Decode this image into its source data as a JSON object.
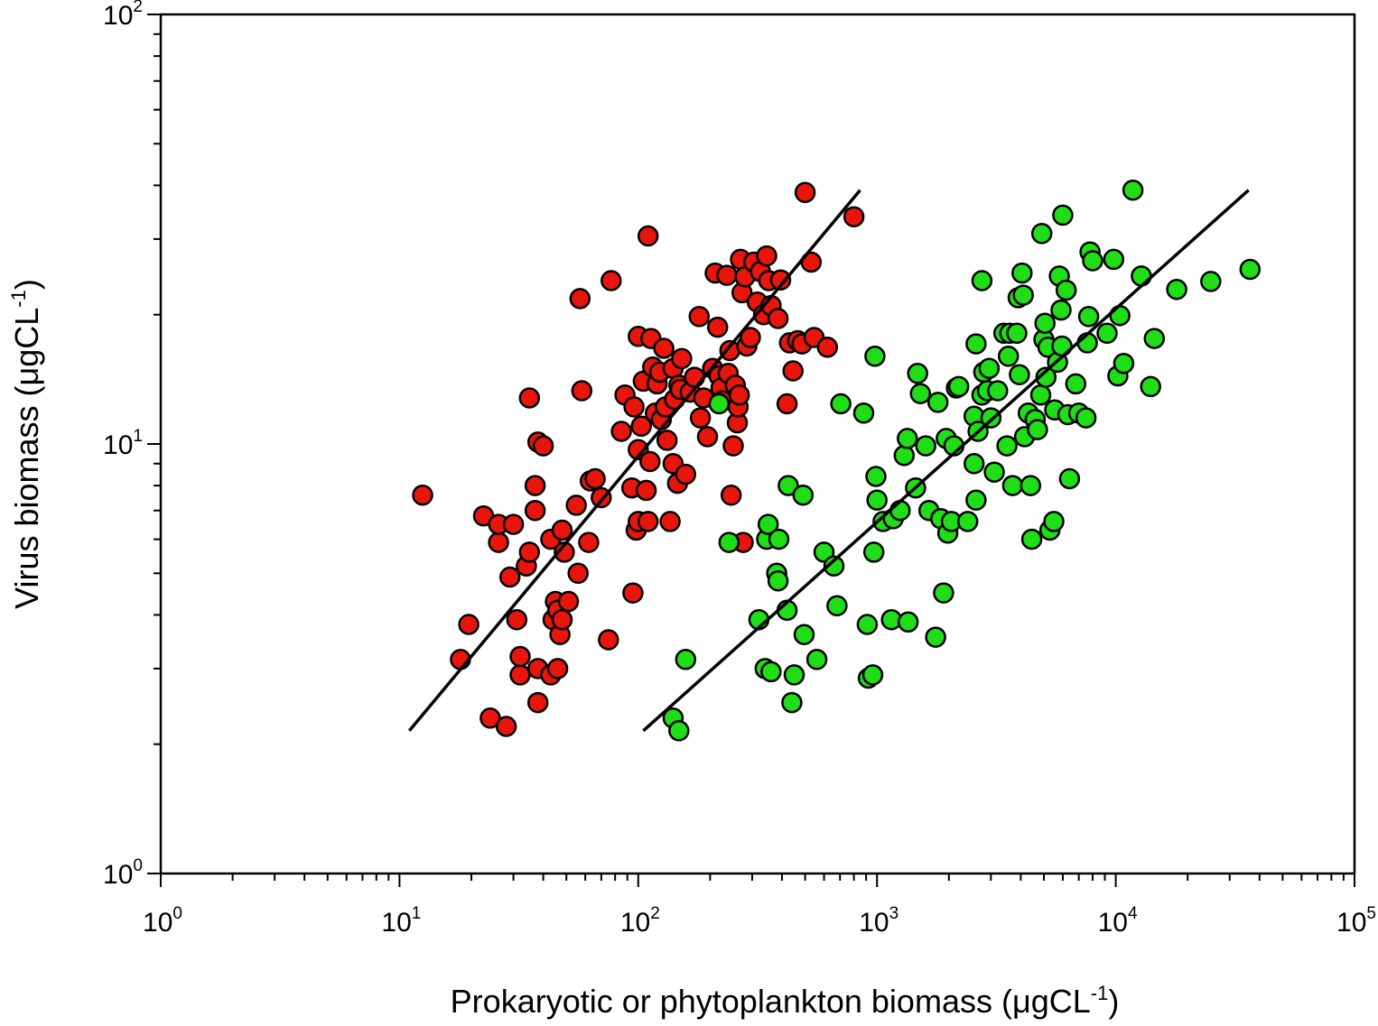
{
  "chart_data": {
    "type": "scatter",
    "title": "",
    "xlabel": {
      "main": "Prokaryotic or phytoplankton biomass (μgCL",
      "sup": "-1",
      "close": ")"
    },
    "ylabel": {
      "main": "Virus biomass (μgCL",
      "sup": "-1",
      "close": ")"
    },
    "x_scale": "log",
    "y_scale": "log",
    "xlim": [
      1,
      100000
    ],
    "ylim": [
      1,
      100
    ],
    "x_ticks": [
      {
        "value": 1,
        "base": "10",
        "exp": "0"
      },
      {
        "value": 10,
        "base": "10",
        "exp": "1"
      },
      {
        "value": 100,
        "base": "10",
        "exp": "2"
      },
      {
        "value": 1000,
        "base": "10",
        "exp": "3"
      },
      {
        "value": 10000,
        "base": "10",
        "exp": "4"
      },
      {
        "value": 100000,
        "base": "10",
        "exp": "5"
      }
    ],
    "y_ticks": [
      {
        "value": 1,
        "base": "10",
        "exp": "0"
      },
      {
        "value": 10,
        "base": "10",
        "exp": "1"
      },
      {
        "value": 100,
        "base": "10",
        "exp": "2"
      }
    ],
    "grid": false,
    "legend": "none",
    "series": [
      {
        "color": "#e8150d",
        "fit_line": [
          [
            11,
            2.15
          ],
          [
            850,
            39
          ]
        ],
        "points": [
          [
            12.5,
            7.6
          ],
          [
            18,
            3.15
          ],
          [
            19.5,
            3.8
          ],
          [
            22.5,
            6.8
          ],
          [
            24,
            2.3
          ],
          [
            26,
            5.9
          ],
          [
            26,
            6.5
          ],
          [
            28,
            2.2
          ],
          [
            29,
            4.9
          ],
          [
            30,
            6.5
          ],
          [
            31,
            3.9
          ],
          [
            32,
            2.9
          ],
          [
            32,
            3.2
          ],
          [
            34,
            5.2
          ],
          [
            35,
            5.6
          ],
          [
            35,
            12.8
          ],
          [
            37,
            8.0
          ],
          [
            37,
            7.0
          ],
          [
            38,
            10.1
          ],
          [
            38,
            2.5
          ],
          [
            38,
            3.0
          ],
          [
            40,
            9.9
          ],
          [
            43,
            2.9
          ],
          [
            43,
            6.0
          ],
          [
            44,
            3.9
          ],
          [
            45,
            4.3
          ],
          [
            46,
            3.0
          ],
          [
            46,
            4.1
          ],
          [
            47,
            3.6
          ],
          [
            48,
            3.9
          ],
          [
            48,
            6.3
          ],
          [
            49,
            5.6
          ],
          [
            51,
            4.3
          ],
          [
            55,
            7.2
          ],
          [
            56,
            5.0
          ],
          [
            57,
            21.8
          ],
          [
            58,
            13.3
          ],
          [
            62,
            5.9
          ],
          [
            63,
            8.2
          ],
          [
            66,
            8.3
          ],
          [
            70,
            7.5
          ],
          [
            75,
            3.5
          ],
          [
            77,
            24.0
          ],
          [
            85,
            10.7
          ],
          [
            88,
            13.0
          ],
          [
            94,
            7.9
          ],
          [
            95,
            4.5
          ],
          [
            96,
            12.2
          ],
          [
            98,
            6.3
          ],
          [
            100,
            6.6
          ],
          [
            100,
            17.8
          ],
          [
            100,
            9.7
          ],
          [
            103,
            11.0
          ],
          [
            105,
            14.0
          ],
          [
            108,
            7.8
          ],
          [
            110,
            30.5
          ],
          [
            110,
            6.6
          ],
          [
            112,
            9.1
          ],
          [
            113,
            17.6
          ],
          [
            115,
            15.1
          ],
          [
            118,
            11.8
          ],
          [
            120,
            13.8
          ],
          [
            123,
            14.7
          ],
          [
            125,
            11.4
          ],
          [
            128,
            16.7
          ],
          [
            130,
            12.2
          ],
          [
            132,
            10.2
          ],
          [
            136,
            6.6
          ],
          [
            140,
            9.0
          ],
          [
            140,
            15.0
          ],
          [
            142,
            12.7
          ],
          [
            146,
            8.1
          ],
          [
            148,
            13.7
          ],
          [
            150,
            13.4
          ],
          [
            152,
            15.8
          ],
          [
            158,
            8.5
          ],
          [
            165,
            13.2
          ],
          [
            172,
            14.3
          ],
          [
            180,
            19.8
          ],
          [
            182,
            11.5
          ],
          [
            188,
            12.8
          ],
          [
            195,
            10.4
          ],
          [
            205,
            15.0
          ],
          [
            210,
            25.0
          ],
          [
            215,
            18.7
          ],
          [
            218,
            14.4
          ],
          [
            222,
            13.5
          ],
          [
            225,
            12.6
          ],
          [
            235,
            24.7
          ],
          [
            238,
            14.6
          ],
          [
            242,
            16.5
          ],
          [
            245,
            7.6
          ],
          [
            250,
            9.9
          ],
          [
            255,
            13.7
          ],
          [
            260,
            11.2
          ],
          [
            262,
            12.2
          ],
          [
            265,
            13.0
          ],
          [
            268,
            26.9
          ],
          [
            272,
            22.5
          ],
          [
            275,
            5.9
          ],
          [
            280,
            24.5
          ],
          [
            285,
            16.9
          ],
          [
            295,
            17.7
          ],
          [
            305,
            26.5
          ],
          [
            315,
            21.4
          ],
          [
            325,
            25.2
          ],
          [
            335,
            20.0
          ],
          [
            345,
            27.4
          ],
          [
            352,
            24.0
          ],
          [
            360,
            21.0
          ],
          [
            385,
            19.6
          ],
          [
            395,
            24.1
          ],
          [
            420,
            12.4
          ],
          [
            430,
            17.2
          ],
          [
            445,
            14.8
          ],
          [
            465,
            17.4
          ],
          [
            485,
            17.1
          ],
          [
            500,
            38.5
          ],
          [
            530,
            26.5
          ],
          [
            545,
            17.7
          ],
          [
            620,
            16.8
          ],
          [
            800,
            33.8
          ]
        ]
      },
      {
        "color": "#1fdd17",
        "fit_line": [
          [
            105,
            2.15
          ],
          [
            36000,
            39
          ]
        ],
        "points": [
          [
            140,
            2.3
          ],
          [
            148,
            2.15
          ],
          [
            158,
            3.15
          ],
          [
            218,
            12.4
          ],
          [
            240,
            5.9
          ],
          [
            320,
            3.9
          ],
          [
            340,
            3.0
          ],
          [
            345,
            6.0
          ],
          [
            350,
            6.5
          ],
          [
            360,
            2.95
          ],
          [
            380,
            5.0
          ],
          [
            385,
            4.8
          ],
          [
            388,
            6.0
          ],
          [
            420,
            4.1
          ],
          [
            425,
            8.0
          ],
          [
            440,
            2.5
          ],
          [
            450,
            2.9
          ],
          [
            490,
            7.6
          ],
          [
            495,
            3.6
          ],
          [
            560,
            3.15
          ],
          [
            600,
            5.6
          ],
          [
            660,
            5.2
          ],
          [
            680,
            4.2
          ],
          [
            705,
            12.4
          ],
          [
            880,
            11.8
          ],
          [
            910,
            3.8
          ],
          [
            920,
            2.85
          ],
          [
            960,
            2.9
          ],
          [
            970,
            5.6
          ],
          [
            980,
            16.0
          ],
          [
            990,
            8.4
          ],
          [
            1000,
            7.4
          ],
          [
            1060,
            6.6
          ],
          [
            1150,
            3.9
          ],
          [
            1170,
            6.7
          ],
          [
            1250,
            7.0
          ],
          [
            1300,
            9.4
          ],
          [
            1340,
            10.3
          ],
          [
            1350,
            3.85
          ],
          [
            1450,
            7.9
          ],
          [
            1480,
            14.6
          ],
          [
            1520,
            13.1
          ],
          [
            1600,
            9.9
          ],
          [
            1650,
            7.0
          ],
          [
            1760,
            3.55
          ],
          [
            1800,
            12.5
          ],
          [
            1850,
            6.7
          ],
          [
            1900,
            4.5
          ],
          [
            1950,
            10.3
          ],
          [
            1980,
            6.2
          ],
          [
            2050,
            6.6
          ],
          [
            2100,
            9.9
          ],
          [
            2150,
            13.5
          ],
          [
            2200,
            13.6
          ],
          [
            2400,
            6.6
          ],
          [
            2550,
            9.0
          ],
          [
            2550,
            11.6
          ],
          [
            2600,
            17.1
          ],
          [
            2600,
            7.4
          ],
          [
            2650,
            10.7
          ],
          [
            2750,
            13.0
          ],
          [
            2750,
            24.0
          ],
          [
            2800,
            14.7
          ],
          [
            2900,
            13.3
          ],
          [
            2950,
            15.0
          ],
          [
            3000,
            11.5
          ],
          [
            3100,
            8.6
          ],
          [
            3200,
            13.3
          ],
          [
            3400,
            18.1
          ],
          [
            3500,
            9.9
          ],
          [
            3550,
            16.0
          ],
          [
            3600,
            18.1
          ],
          [
            3700,
            8.0
          ],
          [
            3850,
            18.1
          ],
          [
            3900,
            21.9
          ],
          [
            3950,
            14.5
          ],
          [
            4050,
            25.0
          ],
          [
            4100,
            22.2
          ],
          [
            4150,
            10.4
          ],
          [
            4300,
            11.8
          ],
          [
            4400,
            8.0
          ],
          [
            4450,
            6.0
          ],
          [
            4600,
            11.4
          ],
          [
            4700,
            10.8
          ],
          [
            4850,
            13.0
          ],
          [
            4900,
            30.9
          ],
          [
            5000,
            17.5
          ],
          [
            5050,
            19.1
          ],
          [
            5100,
            14.3
          ],
          [
            5200,
            16.8
          ],
          [
            5300,
            6.3
          ],
          [
            5500,
            6.6
          ],
          [
            5550,
            12.0
          ],
          [
            5700,
            15.5
          ],
          [
            5800,
            24.6
          ],
          [
            5900,
            20.5
          ],
          [
            5950,
            16.9
          ],
          [
            6000,
            34.1
          ],
          [
            6200,
            22.8
          ],
          [
            6300,
            11.7
          ],
          [
            6400,
            8.3
          ],
          [
            6800,
            13.8
          ],
          [
            7000,
            11.8
          ],
          [
            7500,
            11.5
          ],
          [
            7600,
            17.2
          ],
          [
            7700,
            19.8
          ],
          [
            7800,
            28.0
          ],
          [
            8000,
            26.7
          ],
          [
            9200,
            18.1
          ],
          [
            9800,
            26.9
          ],
          [
            10200,
            14.4
          ],
          [
            10400,
            19.9
          ],
          [
            10800,
            15.4
          ],
          [
            11800,
            39.0
          ],
          [
            12800,
            24.6
          ],
          [
            14000,
            13.6
          ],
          [
            14500,
            17.6
          ],
          [
            18000,
            22.9
          ],
          [
            25000,
            23.9
          ],
          [
            36500,
            25.5
          ]
        ]
      }
    ]
  }
}
